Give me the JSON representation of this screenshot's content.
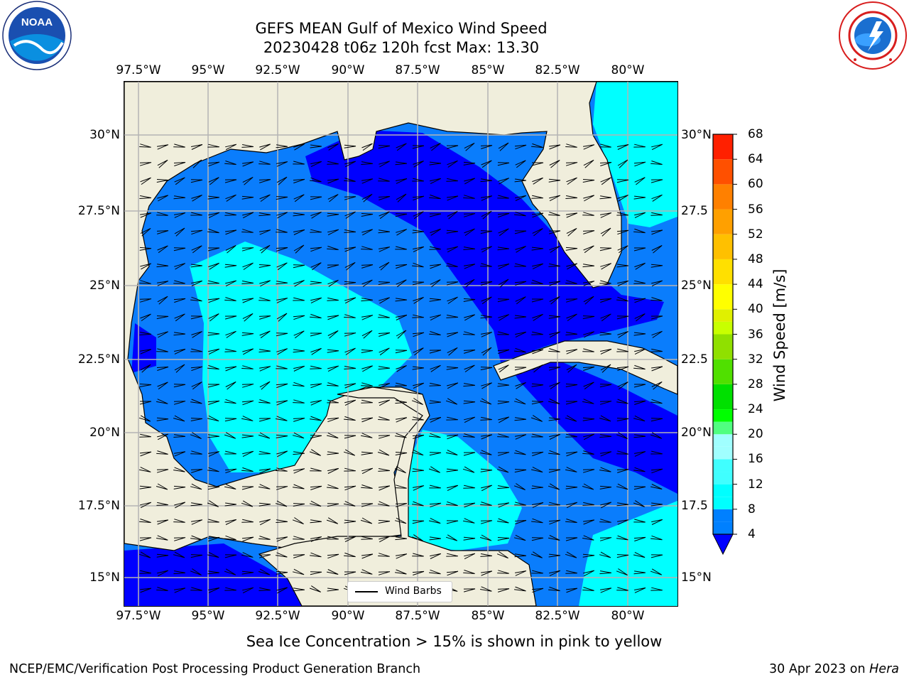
{
  "title": {
    "line1": "GEFS MEAN Gulf of Mexico Wind Speed",
    "line2": "20230428 t06z 120h fcst   Max: 13.30"
  },
  "axes": {
    "lon_labels": [
      "97.5°W",
      "95°W",
      "92.5°W",
      "90°W",
      "87.5°W",
      "85°W",
      "82.5°W",
      "80°W"
    ],
    "lon_values": [
      -97.5,
      -95,
      -92.5,
      -90,
      -87.5,
      -85,
      -82.5,
      -80
    ],
    "lat_labels": [
      "30°N",
      "27.5°N",
      "25°N",
      "22.5°N",
      "20°N",
      "17.5°N",
      "15°N"
    ],
    "lat_values": [
      30,
      27.5,
      25,
      22.5,
      20,
      17.5,
      15
    ],
    "lat_right_labels": [
      "30°N",
      "27.5",
      "25°N",
      "22.5",
      "20°N",
      "17.5",
      "15°N"
    ],
    "lon_range": [
      -98,
      -78.2
    ],
    "lat_range": [
      14,
      31.6
    ]
  },
  "colorbar": {
    "title": "Wind Speed [m/s]",
    "ticks": [
      "4",
      "8",
      "12",
      "16",
      "20",
      "24",
      "28",
      "32",
      "36",
      "40",
      "44",
      "48",
      "52",
      "56",
      "60",
      "64",
      "68"
    ],
    "levels": [
      4,
      6,
      8,
      10,
      12,
      14,
      16,
      18,
      20,
      22,
      24,
      28,
      32,
      36,
      38,
      40,
      44,
      48,
      52,
      56,
      60,
      64,
      68
    ],
    "colors": [
      "#0080ff",
      "#0080ff",
      "#00ffff",
      "#00ffff",
      "#40ffff",
      "#40ffff",
      "#a0ffff",
      "#a0ffff",
      "#50ff80",
      "#00ff00",
      "#00e000",
      "#50e000",
      "#90e000",
      "#c8ff00",
      "#e0f000",
      "#ffff00",
      "#ffe000",
      "#ffc000",
      "#ffa000",
      "#ff8000",
      "#ff5000",
      "#ff2000",
      "#ff0000"
    ],
    "under_color": "#0000ff"
  },
  "legend": {
    "label": "Wind Barbs"
  },
  "note": "Sea Ice Concentration > 15% is shown in pink to yellow",
  "footer": {
    "left": "NCEP/EMC/Verification Post Processing Product Generation Branch",
    "date": "30 Apr 2023 on ",
    "machine": "Hera"
  },
  "logos": {
    "noaa_text": "NOAA"
  },
  "map_colors": {
    "land": "#f0eedc",
    "blue_dark": "#0000ff",
    "blue_mid": "#0a7dfc",
    "cyan": "#00ffff",
    "cyan_light": "#40ffff",
    "grid": "#b4b4b4"
  }
}
